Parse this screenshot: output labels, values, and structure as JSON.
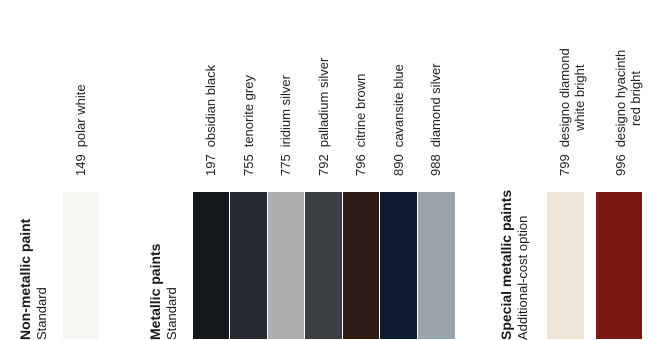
{
  "groups": {
    "non_metallic": {
      "title": "Non-metallic paint",
      "subtitle": "Standard"
    },
    "metallic": {
      "title": "Metallic paints",
      "subtitle": "Standard"
    },
    "special": {
      "title": "Special metallic paints",
      "subtitle": "Additional-cost option"
    }
  },
  "paints": [
    {
      "code": "149",
      "name": "polar white",
      "color": "#f6f7f1"
    },
    {
      "code": "197",
      "name": "obsidian black",
      "color": "#15181a"
    },
    {
      "code": "755",
      "name": "tenorite grey",
      "color": "#252a31"
    },
    {
      "code": "775",
      "name": "iridium silver",
      "color": "#acaeaf"
    },
    {
      "code": "792",
      "name": "palladium silver",
      "color": "#3b3e42"
    },
    {
      "code": "796",
      "name": "citrine brown",
      "color": "#2f1e17"
    },
    {
      "code": "890",
      "name": "cavansite blue",
      "color": "#0f1c2f"
    },
    {
      "code": "988",
      "name": "diamond silver",
      "color": "#99a4ab"
    },
    {
      "code": "799",
      "name_line1": "designo diamond",
      "name_line2": "white bright",
      "color": "#efe8da"
    },
    {
      "code": "996",
      "name_line1": "designo hyacinth",
      "name_line2": "red bright",
      "color": "#7a1812"
    }
  ]
}
